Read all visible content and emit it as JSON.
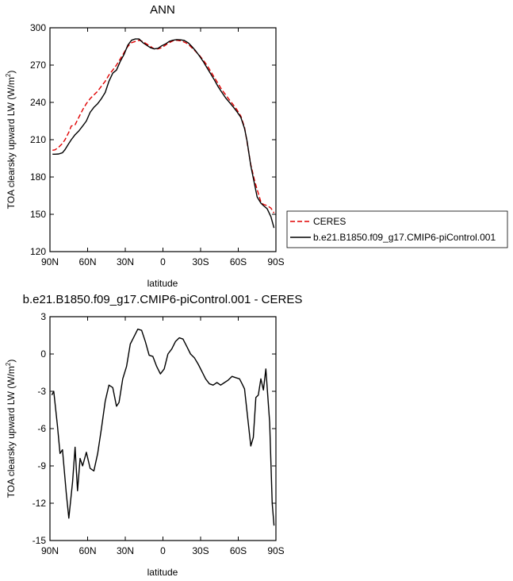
{
  "chart_data": [
    {
      "type": "line",
      "title": "ANN",
      "xlabel": "latitude",
      "ylabel_main": "TOA clearsky upward LW (W/m",
      "ylabel_sup": "2",
      "ylabel_end": ")",
      "xlim": [
        90,
        -90
      ],
      "ylim": [
        120,
        300
      ],
      "x_ticks": [
        90,
        60,
        30,
        0,
        -30,
        -60,
        -90
      ],
      "x_tick_labels": [
        "90N",
        "60N",
        "30N",
        "0",
        "30S",
        "60S",
        "90S"
      ],
      "y_ticks": [
        120,
        150,
        180,
        210,
        240,
        270,
        300
      ],
      "y_tick_labels": [
        "120",
        "150",
        "180",
        "210",
        "240",
        "270",
        "300"
      ],
      "legend_position": "right",
      "series": [
        {
          "name": "CERES",
          "color": "#e00000",
          "dash": "dashed",
          "x": [
            88,
            86,
            83,
            80,
            78,
            75,
            73,
            70,
            67,
            64,
            61,
            58,
            55,
            52,
            49,
            46,
            43,
            40,
            37,
            34,
            31,
            28,
            25,
            22,
            19,
            16,
            13,
            10,
            7,
            4,
            1,
            -2,
            -5,
            -8,
            -11,
            -14,
            -17,
            -20,
            -23,
            -26,
            -29,
            -32,
            -35,
            -38,
            -41,
            -44,
            -47,
            -50,
            -53,
            -56,
            -59,
            -62,
            -65,
            -67,
            -70,
            -73,
            -75,
            -78,
            -80,
            -83,
            -86,
            -88.5
          ],
          "y": [
            201.5,
            201.8,
            204,
            207,
            210,
            216,
            221,
            222,
            228,
            234,
            239,
            243,
            246,
            249,
            253,
            257,
            262,
            266,
            270,
            275,
            280,
            285,
            288,
            289,
            290,
            289,
            287,
            285,
            283,
            283,
            284,
            286,
            288,
            289.5,
            290,
            289.5,
            288.5,
            287,
            284,
            281,
            278,
            274,
            270,
            265,
            260,
            255,
            250,
            246,
            242,
            238,
            234,
            229,
            220,
            208,
            190,
            177,
            170,
            160,
            158,
            157,
            155,
            151
          ]
        },
        {
          "name": "b.e21.B1850.f09_g17.CMIP6-piControl.001",
          "color": "#000000",
          "dash": "solid",
          "x": [
            88,
            86,
            83,
            80,
            78,
            75,
            73,
            70,
            67,
            64,
            61,
            58,
            55,
            52,
            49,
            46,
            43,
            40,
            37,
            34,
            31,
            28,
            25,
            22,
            19,
            16,
            13,
            10,
            7,
            4,
            1,
            -2,
            -5,
            -8,
            -11,
            -14,
            -17,
            -20,
            -23,
            -26,
            -29,
            -32,
            -35,
            -38,
            -41,
            -44,
            -47,
            -50,
            -53,
            -56,
            -59,
            -62,
            -65,
            -67,
            -70,
            -73,
            -75,
            -78,
            -80,
            -83,
            -86,
            -88.5
          ],
          "y": [
            198.3,
            198.3,
            198.5,
            199.5,
            202,
            207,
            210,
            214,
            217,
            221,
            225,
            232,
            236,
            239,
            243,
            248,
            257,
            263.5,
            266,
            273,
            278.5,
            286,
            290,
            291,
            291,
            288,
            286,
            284,
            283,
            283.5,
            285.5,
            287,
            289,
            290,
            290.5,
            290.3,
            289.8,
            288,
            285,
            281.5,
            277.5,
            273,
            268,
            263,
            258,
            252.5,
            248,
            243.5,
            240,
            236.3,
            232.5,
            228,
            219,
            209,
            189,
            174,
            164,
            159,
            157,
            154.5,
            148,
            139
          ]
        }
      ]
    },
    {
      "type": "line",
      "title": "b.e21.B1850.f09_g17.CMIP6-piControl.001 - CERES",
      "xlabel": "latitude",
      "ylabel_main": "TOA clearsky upward LW (W/m",
      "ylabel_sup": "2",
      "ylabel_end": ")",
      "xlim": [
        90,
        -90
      ],
      "ylim": [
        -15,
        3
      ],
      "x_ticks": [
        90,
        60,
        30,
        0,
        -30,
        -60,
        -90
      ],
      "x_tick_labels": [
        "90N",
        "60N",
        "30N",
        "0",
        "30S",
        "60S",
        "90S"
      ],
      "y_ticks": [
        3,
        0,
        -3,
        -6,
        -9,
        -12,
        -15
      ],
      "y_tick_labels": [
        "3",
        "0",
        "-3",
        "-6",
        "-9",
        "-12",
        "-15"
      ],
      "series": [
        {
          "color": "#000000",
          "dash": "solid",
          "x": [
            88.5,
            87,
            84,
            82,
            80,
            77,
            75,
            72,
            70,
            68,
            66,
            64,
            61,
            58,
            55,
            52,
            49,
            46,
            43,
            40,
            37,
            35,
            32,
            29,
            26,
            23,
            20,
            17,
            14,
            11,
            8,
            5,
            2,
            -1,
            -4,
            -7,
            -10,
            -13,
            -16,
            -19,
            -22,
            -25,
            -28,
            -31,
            -34,
            -37,
            -40,
            -43,
            -46,
            -49,
            -52,
            -55,
            -58,
            -61,
            -63,
            -65,
            -68,
            -70,
            -72,
            -74,
            -76,
            -78,
            -80,
            -82,
            -85,
            -87,
            -88.5
          ],
          "y": [
            -3.3,
            -3.0,
            -5.8,
            -8.0,
            -7.7,
            -11.2,
            -13.2,
            -10.3,
            -7.5,
            -11.0,
            -8.4,
            -9.0,
            -7.9,
            -9.2,
            -9.4,
            -8.0,
            -6.0,
            -3.8,
            -2.5,
            -2.7,
            -4.2,
            -3.9,
            -2.0,
            -1.0,
            0.8,
            1.4,
            2.0,
            1.9,
            1.0,
            -0.1,
            -0.2,
            -1.0,
            -1.6,
            -1.2,
            0.0,
            0.4,
            1.0,
            1.3,
            1.2,
            0.6,
            0.0,
            -0.3,
            -0.8,
            -1.4,
            -2.0,
            -2.4,
            -2.5,
            -2.3,
            -2.5,
            -2.3,
            -2.1,
            -1.8,
            -1.9,
            -2.0,
            -2.4,
            -2.8,
            -5.6,
            -7.4,
            -6.7,
            -3.5,
            -3.3,
            -2.0,
            -2.9,
            -1.2,
            -5.5,
            -12.0,
            -13.8
          ]
        }
      ]
    }
  ]
}
